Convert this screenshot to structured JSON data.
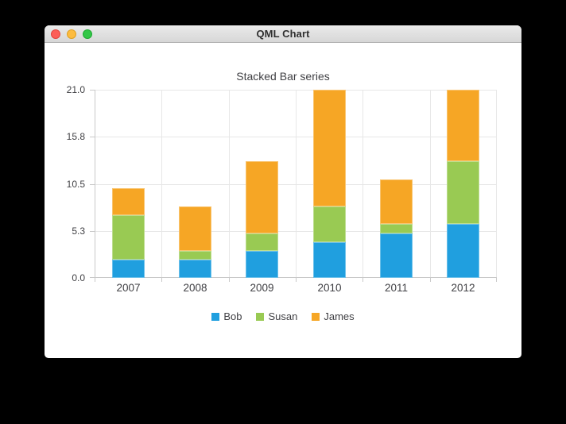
{
  "window": {
    "title": "QML Chart",
    "controls": {
      "close_color": "#fc5e57",
      "minimize_color": "#fdbc40",
      "zoom_color": "#33c748"
    }
  },
  "chart_data": {
    "type": "bar",
    "stacked": true,
    "title": "Stacked Bar series",
    "categories": [
      "2007",
      "2008",
      "2009",
      "2010",
      "2011",
      "2012"
    ],
    "series": [
      {
        "name": "Bob",
        "color": "#209fdf",
        "border_color": "#6ec1ea",
        "values": [
          2,
          2,
          3,
          4,
          5,
          6
        ]
      },
      {
        "name": "Susan",
        "color": "#99ca53",
        "border_color": "#bddd8f",
        "values": [
          5,
          1,
          2,
          4,
          1,
          7
        ]
      },
      {
        "name": "James",
        "color": "#f6a625",
        "border_color": "#f9c571",
        "values": [
          3,
          5,
          8,
          13,
          5,
          8
        ]
      }
    ],
    "y_axis": {
      "range": [
        0,
        21
      ],
      "ticks": [
        {
          "value": 0,
          "label": "0.0"
        },
        {
          "value": 5.25,
          "label": "5.3"
        },
        {
          "value": 10.5,
          "label": "10.5"
        },
        {
          "value": 15.75,
          "label": "15.8"
        },
        {
          "value": 21,
          "label": "21.0"
        }
      ]
    },
    "grid": true,
    "legend_position": "bottom",
    "colors": {
      "grid": "#e7e7e7",
      "axis": "#c9c9c9",
      "text": "#404044"
    }
  }
}
